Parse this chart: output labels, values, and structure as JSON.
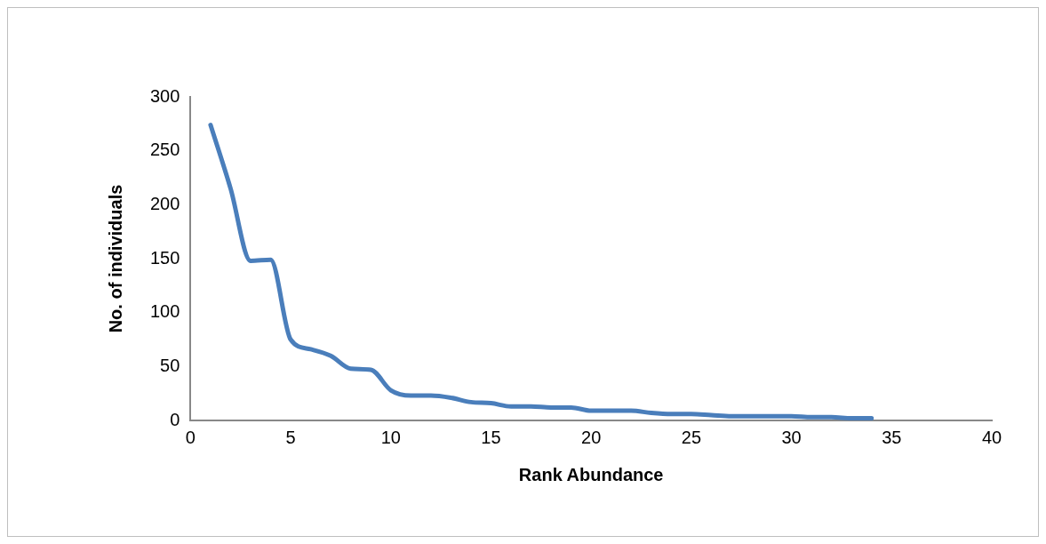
{
  "chart_data": {
    "type": "line",
    "xlabel": "Rank Abundance",
    "ylabel": "No. of individuals",
    "x": [
      1,
      2,
      3,
      4,
      5,
      6,
      7,
      8,
      9,
      10,
      11,
      12,
      13,
      14,
      15,
      16,
      17,
      18,
      19,
      20,
      21,
      22,
      23,
      24,
      25,
      26,
      27,
      28,
      29,
      30,
      31,
      32,
      33,
      34
    ],
    "series": [
      {
        "color": "#4a7ebb",
        "values": [
          274,
          215,
          148,
          149,
          75,
          66,
          60,
          48,
          47,
          28,
          23,
          23,
          21,
          17,
          16,
          13,
          13,
          12,
          12,
          9,
          9,
          9,
          7,
          6,
          6,
          5,
          4,
          4,
          4,
          4,
          3,
          3,
          2,
          2
        ]
      }
    ],
    "xlim": [
      0,
      40
    ],
    "xticks": [
      0,
      5,
      10,
      15,
      20,
      25,
      30,
      35,
      40
    ],
    "ylim": [
      0,
      300
    ],
    "yticks": [
      0,
      50,
      100,
      150,
      200,
      250,
      300
    ],
    "grid": false,
    "legend": false,
    "marker": "none",
    "line_style": "solid"
  }
}
